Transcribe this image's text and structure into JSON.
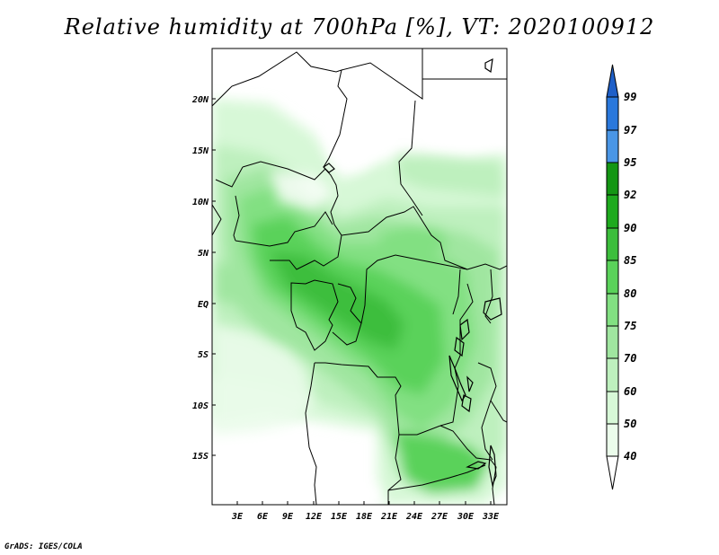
{
  "title": "Relative humidity at 700hPa [%], VT: 2020100912",
  "footer": "GrADS: IGES/COLA",
  "map": {
    "lat_labels": [
      "20N",
      "15N",
      "10N",
      "5N",
      "EQ",
      "5S",
      "10S",
      "15S"
    ],
    "lon_labels": [
      "3E",
      "6E",
      "9E",
      "12E",
      "15E",
      "18E",
      "21E",
      "24E",
      "27E",
      "30E",
      "33E"
    ]
  },
  "colorbar": {
    "levels": [
      "99",
      "97",
      "95",
      "92",
      "90",
      "85",
      "80",
      "75",
      "70",
      "60",
      "50",
      "40"
    ],
    "colors": {
      "above_99": "#1e5fc8",
      "97_99": "#2a78dc",
      "95_97": "#4a96e6",
      "92_95": "#149614",
      "90_92": "#1eaa1e",
      "85_90": "#3cbe3c",
      "80_85": "#5ad25a",
      "75_80": "#82e082",
      "70_75": "#a0e6a0",
      "60_70": "#bef0be",
      "50_60": "#d7f8d7",
      "40_50": "#ebfceb",
      "below_40": "#ffffff"
    }
  }
}
